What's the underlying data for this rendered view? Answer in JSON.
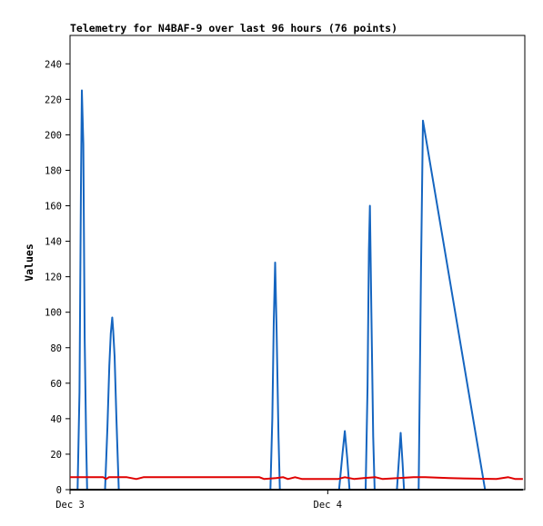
{
  "chart_data": {
    "type": "line",
    "title": "Telemetry for N4BAF-9 over last 96 hours (76 points)",
    "xlabel": "",
    "ylabel": "Values",
    "ylim": [
      0,
      256
    ],
    "yticks": [
      0,
      20,
      40,
      60,
      80,
      100,
      120,
      140,
      160,
      180,
      200,
      220,
      240
    ],
    "x_range_hours": [
      0,
      96
    ],
    "xticks": [
      {
        "hour": 0,
        "label": "Dec 3"
      },
      {
        "hour": 54.4,
        "label": "Dec 4"
      }
    ],
    "series": [
      {
        "color": "#1565c0",
        "points": [
          [
            0.0,
            0
          ],
          [
            1.6,
            0
          ],
          [
            2.0,
            55
          ],
          [
            2.3,
            170
          ],
          [
            2.5,
            225
          ],
          [
            2.8,
            195
          ],
          [
            3.1,
            85
          ],
          [
            3.4,
            28
          ],
          [
            3.6,
            0
          ],
          [
            7.4,
            0
          ],
          [
            7.9,
            35
          ],
          [
            8.3,
            70
          ],
          [
            8.6,
            88
          ],
          [
            8.9,
            97
          ],
          [
            9.1,
            90
          ],
          [
            9.4,
            75
          ],
          [
            9.8,
            40
          ],
          [
            10.3,
            0
          ],
          [
            42.3,
            0
          ],
          [
            42.7,
            40
          ],
          [
            43.0,
            95
          ],
          [
            43.3,
            128
          ],
          [
            43.6,
            90
          ],
          [
            44.0,
            30
          ],
          [
            44.3,
            0
          ],
          [
            56.8,
            0
          ],
          [
            57.5,
            20
          ],
          [
            58.0,
            33
          ],
          [
            58.5,
            18
          ],
          [
            59.0,
            0
          ],
          [
            62.4,
            0
          ],
          [
            62.8,
            58
          ],
          [
            63.1,
            135
          ],
          [
            63.3,
            160
          ],
          [
            63.6,
            100
          ],
          [
            64.0,
            30
          ],
          [
            64.3,
            0
          ],
          [
            69.0,
            0
          ],
          [
            69.5,
            20
          ],
          [
            69.8,
            32
          ],
          [
            70.2,
            15
          ],
          [
            70.5,
            0
          ],
          [
            73.6,
            0
          ],
          [
            74.1,
            125
          ],
          [
            74.5,
            208
          ],
          [
            87.6,
            0
          ],
          [
            95.6,
            0
          ]
        ]
      },
      {
        "color": "#e00000",
        "points": [
          [
            0.0,
            7
          ],
          [
            7.0,
            7
          ],
          [
            7.6,
            6
          ],
          [
            8.2,
            7
          ],
          [
            12.0,
            7
          ],
          [
            14.0,
            6
          ],
          [
            15.5,
            7
          ],
          [
            40.0,
            7
          ],
          [
            41.0,
            6
          ],
          [
            43.5,
            6.5
          ],
          [
            45.0,
            7
          ],
          [
            46.0,
            6
          ],
          [
            47.5,
            7
          ],
          [
            49.0,
            6
          ],
          [
            56.5,
            6
          ],
          [
            58.0,
            7
          ],
          [
            60.0,
            6
          ],
          [
            62.0,
            6.5
          ],
          [
            64.5,
            7
          ],
          [
            66.0,
            6
          ],
          [
            72.5,
            7
          ],
          [
            75.0,
            7
          ],
          [
            80.0,
            6.5
          ],
          [
            90.0,
            6
          ],
          [
            92.5,
            7
          ],
          [
            94.0,
            6
          ],
          [
            95.6,
            6
          ]
        ]
      },
      {
        "color": "#000000",
        "points": [
          [
            0.0,
            0
          ],
          [
            95.6,
            0
          ]
        ]
      }
    ]
  }
}
